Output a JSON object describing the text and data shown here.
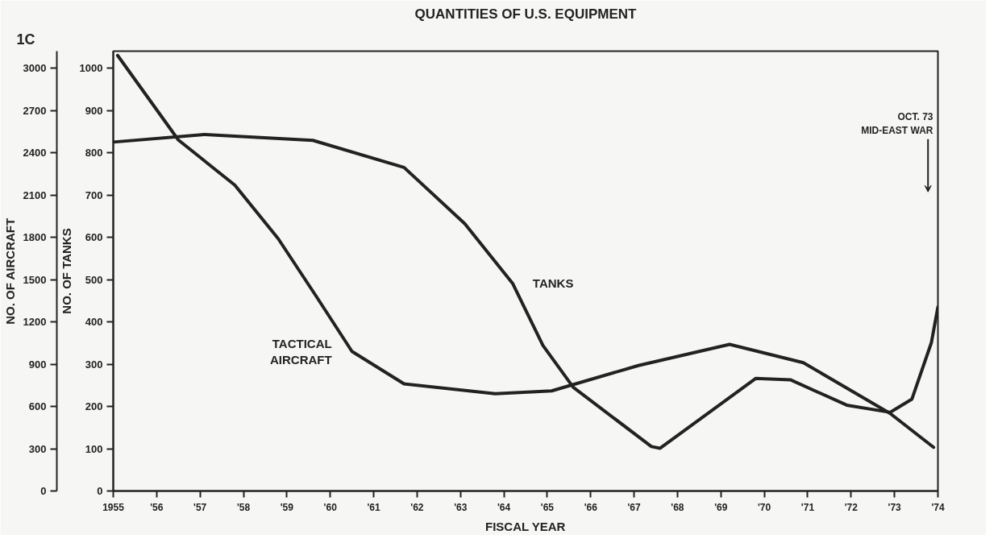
{
  "chart_data": {
    "type": "line",
    "title": "QUANTITIES OF U.S. EQUIPMENT",
    "xlabel": "FISCAL YEAR",
    "ylabel": "NO. OF TANKS",
    "y2label": "NO. OF AIRCRAFT",
    "xlim": [
      1955,
      1974
    ],
    "ylim": [
      0,
      1040
    ],
    "y2lim": [
      0,
      3120
    ],
    "xticks": [
      {
        "value": 1955,
        "label": "1955"
      },
      {
        "value": 1956,
        "label": "'56"
      },
      {
        "value": 1957,
        "label": "'57"
      },
      {
        "value": 1958,
        "label": "'58"
      },
      {
        "value": 1959,
        "label": "'59"
      },
      {
        "value": 1960,
        "label": "'60"
      },
      {
        "value": 1961,
        "label": "'61"
      },
      {
        "value": 1962,
        "label": "'62"
      },
      {
        "value": 1963,
        "label": "'63"
      },
      {
        "value": 1964,
        "label": "'64"
      },
      {
        "value": 1965,
        "label": "'65"
      },
      {
        "value": 1966,
        "label": "'66"
      },
      {
        "value": 1967,
        "label": "'67"
      },
      {
        "value": 1968,
        "label": "'68"
      },
      {
        "value": 1969,
        "label": "'69"
      },
      {
        "value": 1970,
        "label": "'70"
      },
      {
        "value": 1971,
        "label": "'71"
      },
      {
        "value": 1972,
        "label": "'72"
      },
      {
        "value": 1973,
        "label": "'73"
      },
      {
        "value": 1974,
        "label": "'74"
      }
    ],
    "yticks": [
      0,
      100,
      200,
      300,
      400,
      500,
      600,
      700,
      800,
      900,
      1000
    ],
    "y2ticks": [
      0,
      300,
      600,
      900,
      1200,
      1500,
      1800,
      2100,
      2400,
      2700,
      3000
    ],
    "grid": false,
    "marker": "none",
    "line_style": "solid",
    "series": [
      {
        "name": "TANKS",
        "color": "#222222",
        "x": [
          1955.0,
          1957.1,
          1959.6,
          1961.7,
          1963.1,
          1964.2,
          1964.9,
          1965.6,
          1967.4,
          1967.6,
          1969.8,
          1970.6,
          1971.9,
          1972.9,
          1973.4,
          1973.85,
          1974.0
        ],
        "values": [
          825,
          843,
          829,
          765,
          632,
          491,
          344,
          245,
          105,
          101,
          266,
          263,
          203,
          186,
          217,
          351,
          435
        ]
      },
      {
        "name": "TACTICAL AIRCRAFT",
        "color": "#222222",
        "axis": "y2",
        "x": [
          1955.1,
          1956.5,
          1957.8,
          1958.8,
          1959.7,
          1960.5,
          1961.7,
          1963.8,
          1965.1,
          1967.1,
          1969.2,
          1970.9,
          1972.9,
          1973.9
        ],
        "values": [
          3090,
          2490,
          2170,
          1790,
          1370,
          990,
          760,
          690,
          710,
          890,
          1040,
          910,
          550,
          310
        ]
      }
    ],
    "annotations": [
      "1C",
      "OCT. 73\nMID-EAST WAR"
    ]
  }
}
